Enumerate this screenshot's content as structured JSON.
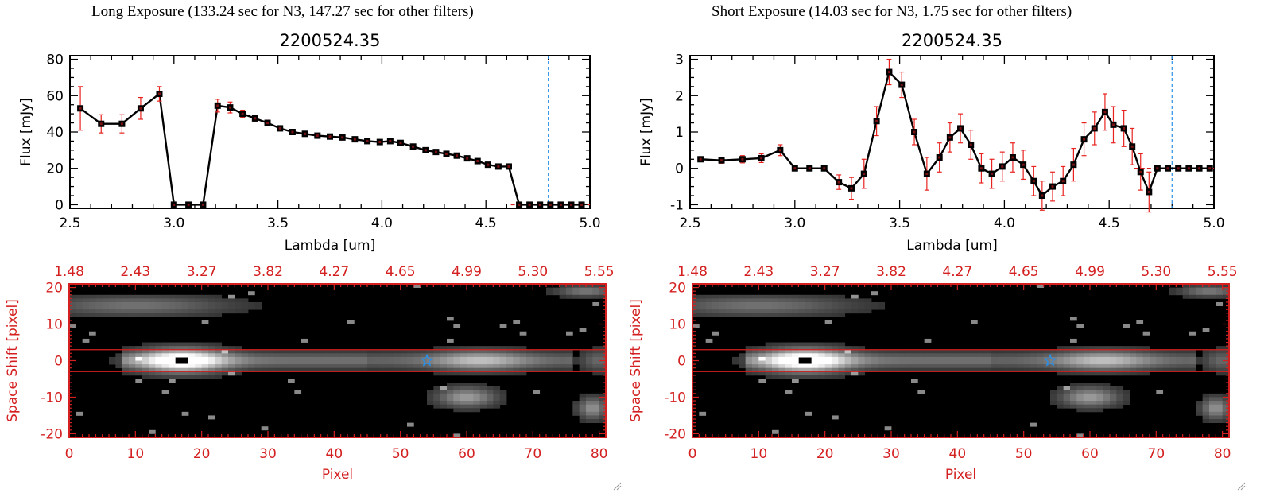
{
  "panels": [
    {
      "title": "Long Exposure (133.24 sec for N3, 147.27 sec for other filters)"
    },
    {
      "title": "Short Exposure (14.03 sec for N3, 1.75 sec for other filters)"
    }
  ],
  "colors": {
    "axis": "#000000",
    "errorbar": "#e8231f",
    "marker": "#000000",
    "image_axis": "#d42020",
    "cut_line": "#d42020",
    "dashed_line": "#2a8fe8",
    "star": "#2a8fe8",
    "zero_dash": "#d42020"
  },
  "chart_data": [
    {
      "type": "line",
      "title": "2200524.35",
      "xlabel": "Lambda [um]",
      "ylabel": "Flux [mJy]",
      "xlim": [
        2.5,
        5.0
      ],
      "ylim": [
        -2,
        82
      ],
      "xticks": [
        2.5,
        3.0,
        3.5,
        4.0,
        4.5,
        5.0
      ],
      "xtick_labels": [
        "2.5",
        "3.0",
        "3.5",
        "4.0",
        "4.5",
        "5.0"
      ],
      "yticks": [
        0,
        20,
        40,
        60,
        80
      ],
      "ytick_labels": [
        "0",
        "20",
        "40",
        "60",
        "80"
      ],
      "vline": 4.8,
      "zero_dash_from": 4.62,
      "points": [
        {
          "x": 2.55,
          "y": 53,
          "err": 12
        },
        {
          "x": 2.65,
          "y": 44.5,
          "err": 5
        },
        {
          "x": 2.75,
          "y": 44.5,
          "err": 5
        },
        {
          "x": 2.84,
          "y": 53,
          "err": 6
        },
        {
          "x": 2.93,
          "y": 61,
          "err": 4
        },
        {
          "x": 3.0,
          "y": 0,
          "err": 0
        },
        {
          "x": 3.07,
          "y": 0,
          "err": 0
        },
        {
          "x": 3.14,
          "y": 0,
          "err": 0
        },
        {
          "x": 3.21,
          "y": 54.5,
          "err": 3.5
        },
        {
          "x": 3.27,
          "y": 53.5,
          "err": 3
        },
        {
          "x": 3.33,
          "y": 50,
          "err": 2
        },
        {
          "x": 3.39,
          "y": 47.5,
          "err": 1.5
        },
        {
          "x": 3.45,
          "y": 45,
          "err": 1.5
        },
        {
          "x": 3.51,
          "y": 42,
          "err": 1
        },
        {
          "x": 3.57,
          "y": 40,
          "err": 1
        },
        {
          "x": 3.63,
          "y": 39,
          "err": 1
        },
        {
          "x": 3.69,
          "y": 38,
          "err": 1
        },
        {
          "x": 3.75,
          "y": 37.5,
          "err": 1
        },
        {
          "x": 3.81,
          "y": 37,
          "err": 1
        },
        {
          "x": 3.87,
          "y": 36,
          "err": 1
        },
        {
          "x": 3.93,
          "y": 35,
          "err": 1
        },
        {
          "x": 3.99,
          "y": 34.5,
          "err": 1
        },
        {
          "x": 4.04,
          "y": 35,
          "err": 1
        },
        {
          "x": 4.09,
          "y": 34,
          "err": 1
        },
        {
          "x": 4.15,
          "y": 32,
          "err": 1
        },
        {
          "x": 4.21,
          "y": 30,
          "err": 1
        },
        {
          "x": 4.26,
          "y": 29,
          "err": 1
        },
        {
          "x": 4.31,
          "y": 28,
          "err": 1
        },
        {
          "x": 4.36,
          "y": 27,
          "err": 1
        },
        {
          "x": 4.41,
          "y": 25.5,
          "err": 1
        },
        {
          "x": 4.46,
          "y": 24,
          "err": 1
        },
        {
          "x": 4.51,
          "y": 22,
          "err": 1
        },
        {
          "x": 4.56,
          "y": 21,
          "err": 1
        },
        {
          "x": 4.61,
          "y": 21,
          "err": 1
        },
        {
          "x": 4.66,
          "y": 0,
          "err": 0
        },
        {
          "x": 4.71,
          "y": 0,
          "err": 0
        },
        {
          "x": 4.76,
          "y": 0,
          "err": 0
        },
        {
          "x": 4.81,
          "y": 0,
          "err": 0
        },
        {
          "x": 4.86,
          "y": 0,
          "err": 0
        },
        {
          "x": 4.91,
          "y": 0,
          "err": 0
        },
        {
          "x": 4.96,
          "y": 0,
          "err": 0
        }
      ]
    },
    {
      "type": "line",
      "title": "2200524.35",
      "xlabel": "Lambda [um]",
      "ylabel": "Flux [mJy]",
      "xlim": [
        2.5,
        5.0
      ],
      "ylim": [
        -1.1,
        3.1
      ],
      "xticks": [
        2.5,
        3.0,
        3.5,
        4.0,
        4.5,
        5.0
      ],
      "xtick_labels": [
        "2.5",
        "3.0",
        "3.5",
        "4.0",
        "4.5",
        "5.0"
      ],
      "yticks": [
        -1,
        0,
        1,
        2,
        3
      ],
      "ytick_labels": [
        "-1",
        "0",
        "1",
        "2",
        "3"
      ],
      "vline": 4.8,
      "zero_dash_from": 4.62,
      "points": [
        {
          "x": 2.55,
          "y": 0.25,
          "err": 0.05
        },
        {
          "x": 2.65,
          "y": 0.22,
          "err": 0.08
        },
        {
          "x": 2.75,
          "y": 0.25,
          "err": 0.1
        },
        {
          "x": 2.84,
          "y": 0.28,
          "err": 0.12
        },
        {
          "x": 2.93,
          "y": 0.5,
          "err": 0.15
        },
        {
          "x": 3.0,
          "y": 0.0,
          "err": 0
        },
        {
          "x": 3.07,
          "y": 0.0,
          "err": 0
        },
        {
          "x": 3.14,
          "y": 0.0,
          "err": 0
        },
        {
          "x": 3.21,
          "y": -0.38,
          "err": 0.2
        },
        {
          "x": 3.27,
          "y": -0.55,
          "err": 0.3
        },
        {
          "x": 3.33,
          "y": -0.15,
          "err": 0.4
        },
        {
          "x": 3.39,
          "y": 1.3,
          "err": 0.4
        },
        {
          "x": 3.45,
          "y": 2.65,
          "err": 0.35
        },
        {
          "x": 3.51,
          "y": 2.3,
          "err": 0.35
        },
        {
          "x": 3.57,
          "y": 1.0,
          "err": 0.35
        },
        {
          "x": 3.63,
          "y": -0.15,
          "err": 0.45
        },
        {
          "x": 3.69,
          "y": 0.3,
          "err": 0.4
        },
        {
          "x": 3.74,
          "y": 0.85,
          "err": 0.4
        },
        {
          "x": 3.79,
          "y": 1.1,
          "err": 0.4
        },
        {
          "x": 3.84,
          "y": 0.65,
          "err": 0.4
        },
        {
          "x": 3.89,
          "y": 0.0,
          "err": 0.4
        },
        {
          "x": 3.94,
          "y": -0.15,
          "err": 0.4
        },
        {
          "x": 3.99,
          "y": 0.05,
          "err": 0.4
        },
        {
          "x": 4.04,
          "y": 0.3,
          "err": 0.4
        },
        {
          "x": 4.09,
          "y": 0.1,
          "err": 0.4
        },
        {
          "x": 4.14,
          "y": -0.35,
          "err": 0.4
        },
        {
          "x": 4.18,
          "y": -0.75,
          "err": 0.4
        },
        {
          "x": 4.23,
          "y": -0.5,
          "err": 0.4
        },
        {
          "x": 4.28,
          "y": -0.35,
          "err": 0.4
        },
        {
          "x": 4.33,
          "y": 0.1,
          "err": 0.45
        },
        {
          "x": 4.38,
          "y": 0.8,
          "err": 0.45
        },
        {
          "x": 4.43,
          "y": 1.1,
          "err": 0.45
        },
        {
          "x": 4.48,
          "y": 1.55,
          "err": 0.5
        },
        {
          "x": 4.52,
          "y": 1.2,
          "err": 0.5
        },
        {
          "x": 4.57,
          "y": 1.1,
          "err": 0.5
        },
        {
          "x": 4.61,
          "y": 0.6,
          "err": 0.5
        },
        {
          "x": 4.65,
          "y": -0.1,
          "err": 0.5
        },
        {
          "x": 4.69,
          "y": -0.65,
          "err": 0.55
        },
        {
          "x": 4.73,
          "y": 0.0,
          "err": 0
        },
        {
          "x": 4.78,
          "y": 0.0,
          "err": 0
        },
        {
          "x": 4.83,
          "y": 0.0,
          "err": 0
        },
        {
          "x": 4.88,
          "y": 0.0,
          "err": 0
        },
        {
          "x": 4.93,
          "y": 0.0,
          "err": 0
        },
        {
          "x": 4.98,
          "y": 0.0,
          "err": 0
        }
      ]
    },
    {
      "type": "heatmap",
      "xlabel": "Pixel",
      "ylabel": "Space Shift [pixel]",
      "xlim": [
        0,
        81
      ],
      "ylim": [
        -21,
        21
      ],
      "xticks": [
        0,
        10,
        20,
        30,
        40,
        50,
        60,
        70,
        80
      ],
      "xtick_labels": [
        "0",
        "10",
        "20",
        "30",
        "40",
        "50",
        "60",
        "70",
        "80"
      ],
      "yticks": [
        -20,
        -10,
        0,
        10,
        20
      ],
      "ytick_labels": [
        "-20",
        "-10",
        "0",
        "10",
        "20"
      ],
      "top_axis_labels": [
        "1.48",
        "2.43",
        "3.27",
        "3.82",
        "4.27",
        "4.65",
        "4.99",
        "5.30",
        "5.55"
      ],
      "cut_lines": [
        3,
        -3
      ],
      "source_marker": {
        "x": 17,
        "y": 0
      },
      "star_marker": {
        "x": 54,
        "y": 0
      }
    },
    {
      "type": "heatmap",
      "xlabel": "Pixel",
      "ylabel": "Space Shift [pixel]",
      "xlim": [
        0,
        81
      ],
      "ylim": [
        -21,
        21
      ],
      "xticks": [
        0,
        10,
        20,
        30,
        40,
        50,
        60,
        70,
        80
      ],
      "xtick_labels": [
        "0",
        "10",
        "20",
        "30",
        "40",
        "50",
        "60",
        "70",
        "80"
      ],
      "yticks": [
        -20,
        -10,
        0,
        10,
        20
      ],
      "ytick_labels": [
        "-20",
        "-10",
        "0",
        "10",
        "20"
      ],
      "top_axis_labels": [
        "1.48",
        "2.43",
        "3.27",
        "3.82",
        "4.27",
        "4.65",
        "4.99",
        "5.30",
        "5.55"
      ],
      "cut_lines": [
        3,
        -3
      ],
      "source_marker": {
        "x": 17,
        "y": 0
      },
      "star_marker": {
        "x": 54,
        "y": 0
      }
    }
  ]
}
